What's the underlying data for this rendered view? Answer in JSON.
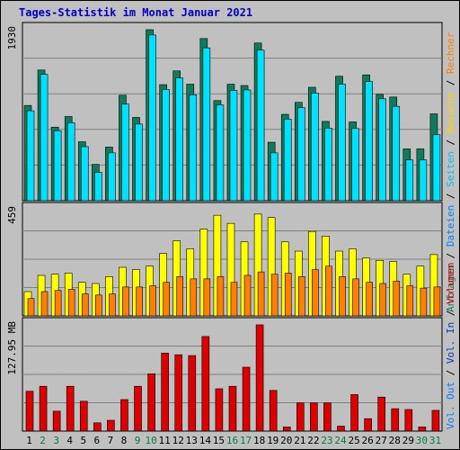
{
  "title": "Tages-Statistik im Monat Januar 2021",
  "colors": {
    "anfragen": "#0e7c5a",
    "dateien": "#00e0ff",
    "seiten": "#0000ff",
    "besuche": "#ffff00",
    "rechner": "#ff8000",
    "volumen": "#dd0000",
    "weekday_label": "#000000",
    "weekend_label": "#007f3f",
    "panel_bg": "#c0c0c0",
    "grid": "#808080"
  },
  "right_labels": {
    "top": [
      {
        "text": "Anfragen",
        "color": "#0e7c5a"
      },
      {
        "text": " / ",
        "color": "#000000"
      },
      {
        "text": "Dateien",
        "color": "#0080ff"
      },
      {
        "text": " / ",
        "color": "#000000"
      },
      {
        "text": "Seiten",
        "color": "#00c0ff"
      },
      {
        "text": " / ",
        "color": "#000000"
      },
      {
        "text": "Besuche",
        "color": "#ffd000"
      },
      {
        "text": " / ",
        "color": "#000000"
      },
      {
        "text": "Rechner",
        "color": "#ff8000"
      }
    ],
    "bottom": [
      {
        "text": "Vol. Out",
        "color": "#0080ff"
      },
      {
        "text": " / ",
        "color": "#000000"
      },
      {
        "text": "Vol. In",
        "color": "#0040c0"
      },
      {
        "text": " / ",
        "color": "#000000"
      },
      {
        "text": "Volumen",
        "color": "#dd0000"
      }
    ]
  },
  "chart_data": [
    {
      "type": "bar",
      "name": "panel-requests",
      "ymax_label": "1930",
      "ylim": [
        0,
        1930
      ],
      "categories": [
        "1",
        "2",
        "3",
        "4",
        "5",
        "6",
        "7",
        "8",
        "9",
        "10",
        "11",
        "12",
        "13",
        "14",
        "15",
        "16",
        "17",
        "18",
        "19",
        "20",
        "21",
        "22",
        "23",
        "24",
        "25",
        "26",
        "27",
        "28",
        "29",
        "30",
        "31"
      ],
      "weekend": [
        2,
        3,
        9,
        10,
        16,
        17,
        23,
        24,
        30,
        31
      ],
      "series": [
        {
          "name": "Anfragen",
          "values": [
            1075,
            1475,
            830,
            950,
            665,
            410,
            605,
            1190,
            940,
            1930,
            1310,
            1465,
            1315,
            1830,
            1130,
            1315,
            1300,
            1780,
            660,
            975,
            1110,
            1280,
            895,
            1405,
            890,
            1420,
            1200,
            1170,
            585,
            585,
            980
          ]
        },
        {
          "name": "Dateien",
          "values": [
            1015,
            1425,
            790,
            880,
            610,
            320,
            540,
            1090,
            865,
            1870,
            1255,
            1385,
            1195,
            1725,
            1080,
            1245,
            1250,
            1700,
            540,
            920,
            1050,
            1215,
            820,
            1315,
            815,
            1345,
            1150,
            1065,
            460,
            460,
            745
          ]
        },
        {
          "name": "Seiten",
          "values": [
            990,
            1395,
            775,
            885,
            595,
            310,
            525,
            1080,
            855,
            1860,
            1245,
            1375,
            1185,
            1710,
            1065,
            1230,
            1235,
            1685,
            530,
            905,
            1040,
            1205,
            810,
            1300,
            800,
            1330,
            1135,
            1055,
            450,
            450,
            735
          ]
        }
      ]
    },
    {
      "type": "bar",
      "name": "panel-visits",
      "ymax_label": "459",
      "ylim": [
        0,
        459
      ],
      "categories": [
        "1",
        "2",
        "3",
        "4",
        "5",
        "6",
        "7",
        "8",
        "9",
        "10",
        "11",
        "12",
        "13",
        "14",
        "15",
        "16",
        "17",
        "18",
        "19",
        "20",
        "21",
        "22",
        "23",
        "24",
        "25",
        "26",
        "27",
        "28",
        "29",
        "30",
        "31"
      ],
      "series": [
        {
          "name": "Besuche",
          "values": [
            105,
            175,
            180,
            185,
            145,
            140,
            170,
            210,
            200,
            215,
            270,
            325,
            290,
            375,
            435,
            400,
            320,
            440,
            425,
            320,
            280,
            365,
            345,
            280,
            290,
            250,
            240,
            235,
            180,
            215,
            265
          ]
        },
        {
          "name": "Rechner",
          "values": [
            75,
            105,
            110,
            115,
            95,
            90,
            95,
            125,
            125,
            130,
            145,
            170,
            160,
            160,
            170,
            145,
            175,
            190,
            180,
            185,
            170,
            200,
            215,
            170,
            160,
            145,
            140,
            150,
            130,
            120,
            125
          ]
        }
      ]
    },
    {
      "type": "bar",
      "name": "panel-volume",
      "ymax_label": "127.95 MB",
      "ylim": [
        0,
        127.95
      ],
      "unit": "MB",
      "categories": [
        "1",
        "2",
        "3",
        "4",
        "5",
        "6",
        "7",
        "8",
        "9",
        "10",
        "11",
        "12",
        "13",
        "14",
        "15",
        "16",
        "17",
        "18",
        "19",
        "20",
        "21",
        "22",
        "23",
        "24",
        "25",
        "26",
        "27",
        "28",
        "29",
        "30",
        "31"
      ],
      "series": [
        {
          "name": "Volumen",
          "values": [
            48,
            54,
            24,
            54,
            36,
            10,
            13,
            38,
            54,
            69,
            94,
            92,
            91,
            114,
            51,
            54,
            77,
            128,
            49,
            5,
            34,
            34,
            34,
            6,
            44,
            15,
            41,
            27,
            26,
            5,
            25
          ]
        }
      ]
    }
  ]
}
